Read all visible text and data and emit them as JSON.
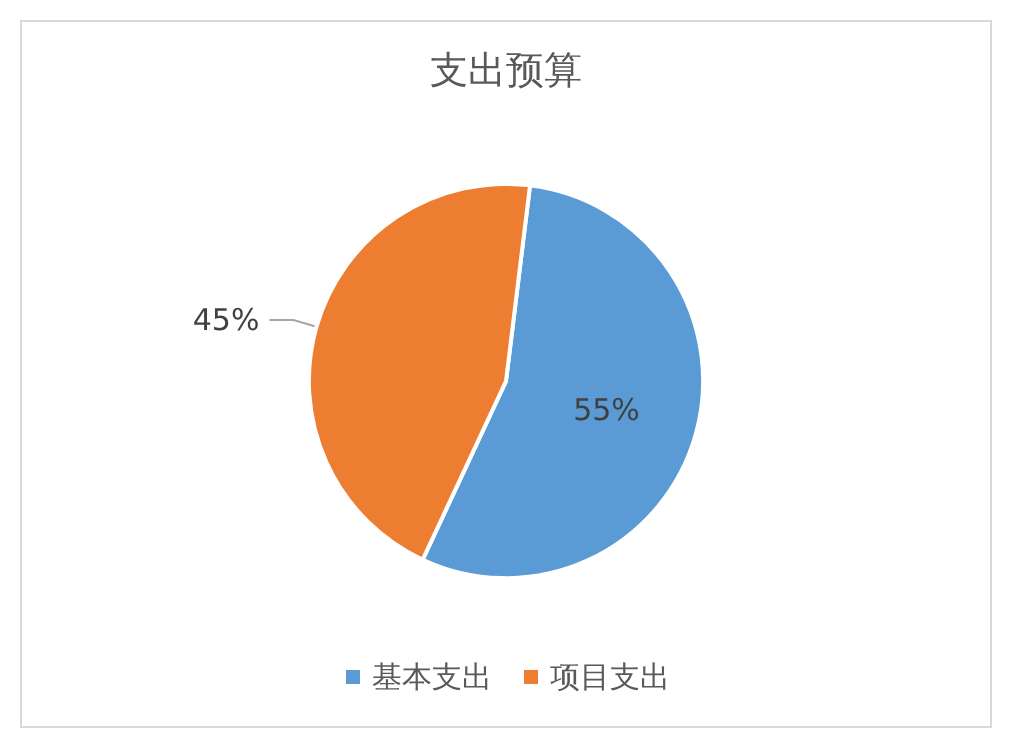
{
  "chart_data": {
    "type": "pie",
    "title": "支出预算",
    "categories": [
      "基本支出",
      "项目支出"
    ],
    "values": [
      55,
      45
    ],
    "colors": [
      "#5b9bd5",
      "#ed7d31"
    ],
    "value_labels": [
      "55%",
      "45%"
    ],
    "legend": "bottom"
  }
}
